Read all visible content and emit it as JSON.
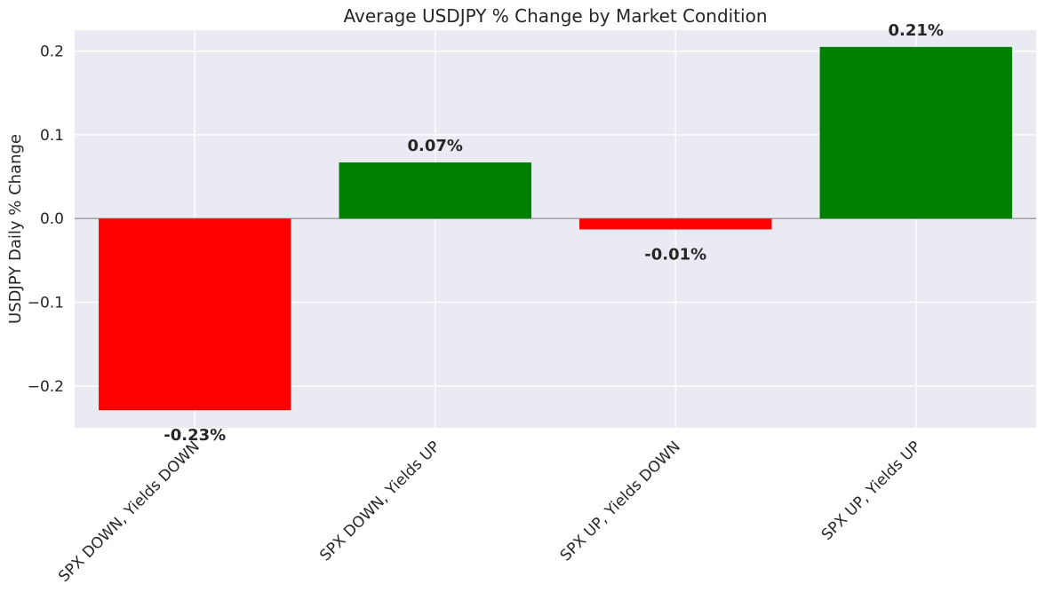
{
  "chart_data": {
    "type": "bar",
    "title": "Average USDJPY % Change by Market Condition",
    "xlabel": "",
    "ylabel": "USDJPY Daily % Change",
    "categories": [
      "SPX DOWN, Yields DOWN",
      "SPX DOWN, Yields UP",
      "SPX UP, Yields DOWN",
      "SPX UP, Yields UP"
    ],
    "values": [
      -0.229,
      0.067,
      -0.013,
      0.205
    ],
    "value_labels": [
      "-0.23%",
      "0.07%",
      "-0.01%",
      "0.21%"
    ],
    "bar_colors": [
      "#ff0000",
      "#008000",
      "#ff0000",
      "#008000"
    ],
    "ylim": [
      -0.25,
      0.225
    ],
    "yticks": [
      -0.2,
      -0.1,
      0.0,
      0.1,
      0.2
    ],
    "ytick_labels": [
      "−0.2",
      "−0.1",
      "0.0",
      "0.1",
      "0.2"
    ],
    "grid": true,
    "zero_line": true,
    "background_color": "#eaeaf2",
    "grid_color": "#ffffff",
    "zero_line_color": "#a0a0a0"
  }
}
